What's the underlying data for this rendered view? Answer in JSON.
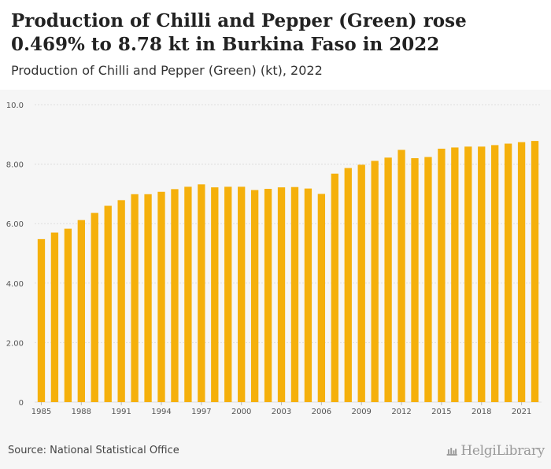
{
  "header": {
    "title": "Production of Chilli and Pepper (Green) rose 0.469% to 8.78 kt in Burkina Faso in 2022",
    "subtitle": "Production of Chilli and Pepper (Green) (kt), 2022"
  },
  "footer": {
    "source": "Source: National Statistical Office",
    "logo_text": "HelgiLibrary"
  },
  "colors": {
    "bar": "#f5b00b",
    "grid": "#dddddd",
    "axis_text": "#555555",
    "background": "#f6f6f6"
  },
  "chart_data": {
    "type": "bar",
    "title": "",
    "xlabel": "",
    "ylabel": "",
    "ylim": [
      0,
      10
    ],
    "y_ticks": [
      {
        "value": 0,
        "label": "0"
      },
      {
        "value": 2,
        "label": "2.00"
      },
      {
        "value": 4,
        "label": "4.00"
      },
      {
        "value": 6,
        "label": "6.00"
      },
      {
        "value": 8,
        "label": "8.00"
      },
      {
        "value": 10,
        "label": "10.0"
      }
    ],
    "x_tick_labels": [
      "1985",
      "1988",
      "1991",
      "1994",
      "1997",
      "2000",
      "2003",
      "2006",
      "2009",
      "2012",
      "2015",
      "2018",
      "2021"
    ],
    "grid": true,
    "legend": "none",
    "categories": [
      "1985",
      "1986",
      "1987",
      "1988",
      "1989",
      "1990",
      "1991",
      "1992",
      "1993",
      "1994",
      "1995",
      "1996",
      "1997",
      "1998",
      "1999",
      "2000",
      "2001",
      "2002",
      "2003",
      "2004",
      "2005",
      "2006",
      "2007",
      "2008",
      "2009",
      "2010",
      "2011",
      "2012",
      "2013",
      "2014",
      "2015",
      "2016",
      "2017",
      "2018",
      "2019",
      "2020",
      "2021",
      "2022"
    ],
    "values": [
      5.48,
      5.7,
      5.83,
      6.12,
      6.36,
      6.6,
      6.79,
      6.99,
      6.99,
      7.07,
      7.16,
      7.24,
      7.32,
      7.22,
      7.24,
      7.24,
      7.13,
      7.17,
      7.22,
      7.23,
      7.18,
      7.0,
      7.68,
      7.87,
      7.98,
      8.11,
      8.22,
      8.48,
      8.2,
      8.24,
      8.52,
      8.56,
      8.59,
      8.59,
      8.64,
      8.69,
      8.74,
      8.78
    ]
  }
}
